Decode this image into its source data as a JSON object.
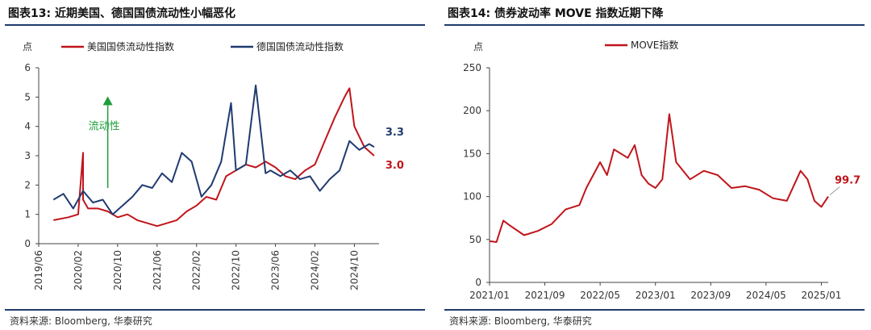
{
  "charts": {
    "left": {
      "title": "图表13:   近期美国、德国国债流动性小幅恶化",
      "source": "资料来源:   Bloomberg,  华泰研究"
    },
    "right": {
      "title": "图表14:   债券波动率 MOVE 指数近期下降",
      "source": "资料来源:   Bloomberg,  华泰研究"
    }
  },
  "chart_data": [
    {
      "type": "line",
      "id": "left",
      "ylabel": "点",
      "ylim": [
        0,
        6
      ],
      "yticks": [
        "0",
        "1",
        "2",
        "3",
        "4",
        "5",
        "6"
      ],
      "xticks": [
        "2019/06",
        "2020/02",
        "2020/10",
        "2021/06",
        "2022/02",
        "2022/10",
        "2023/06",
        "2024/02",
        "2024/10"
      ],
      "xrange": [
        "2019/06",
        "2025/03"
      ],
      "grid": false,
      "legend_position": "top",
      "annotation": {
        "text": "流动性",
        "arrow_from": 1.9,
        "arrow_to": 5.0,
        "x": "2020/08"
      },
      "series": [
        {
          "name": "美国国债流动性指数",
          "color": "#c0151b",
          "end_label": "3.0",
          "x": [
            "2019/09",
            "2019/12",
            "2020/02",
            "2020/03",
            "2020/03",
            "2020/04",
            "2020/06",
            "2020/08",
            "2020/10",
            "2020/12",
            "2021/02",
            "2021/04",
            "2021/06",
            "2021/08",
            "2021/10",
            "2021/12",
            "2022/02",
            "2022/04",
            "2022/06",
            "2022/08",
            "2022/10",
            "2022/12",
            "2023/02",
            "2023/04",
            "2023/06",
            "2023/08",
            "2023/10",
            "2023/12",
            "2024/02",
            "2024/04",
            "2024/06",
            "2024/08",
            "2024/09",
            "2024/10",
            "2024/12",
            "2025/02"
          ],
          "values": [
            0.8,
            0.9,
            1.0,
            3.1,
            1.5,
            1.2,
            1.2,
            1.1,
            0.9,
            1.0,
            0.8,
            0.7,
            0.6,
            0.7,
            0.8,
            1.1,
            1.3,
            1.6,
            1.5,
            2.3,
            2.5,
            2.7,
            2.6,
            2.8,
            2.6,
            2.3,
            2.2,
            2.5,
            2.7,
            3.5,
            4.3,
            5.0,
            5.3,
            4.0,
            3.3,
            3.0
          ]
        },
        {
          "name": "德国国债流动性指数",
          "color": "#1f3b70",
          "end_label": "3.3",
          "x": [
            "2019/09",
            "2019/11",
            "2020/01",
            "2020/03",
            "2020/05",
            "2020/07",
            "2020/09",
            "2020/11",
            "2021/01",
            "2021/03",
            "2021/05",
            "2021/07",
            "2021/09",
            "2021/11",
            "2022/01",
            "2022/03",
            "2022/05",
            "2022/07",
            "2022/09",
            "2022/10",
            "2022/12",
            "2023/02",
            "2023/04",
            "2023/05",
            "2023/07",
            "2023/09",
            "2023/11",
            "2024/01",
            "2024/03",
            "2024/05",
            "2024/07",
            "2024/09",
            "2024/11",
            "2025/01",
            "2025/02"
          ],
          "values": [
            1.5,
            1.7,
            1.2,
            1.8,
            1.4,
            1.5,
            1.0,
            1.3,
            1.6,
            2.0,
            1.9,
            2.4,
            2.1,
            3.1,
            2.8,
            1.6,
            2.0,
            2.8,
            4.8,
            2.5,
            2.7,
            5.4,
            2.4,
            2.5,
            2.3,
            2.5,
            2.2,
            2.3,
            1.8,
            2.2,
            2.5,
            3.5,
            3.2,
            3.4,
            3.3
          ]
        }
      ]
    },
    {
      "type": "line",
      "id": "right",
      "ylabel": "点",
      "ylim": [
        0,
        250
      ],
      "yticks": [
        "0",
        "50",
        "100",
        "150",
        "200",
        "250"
      ],
      "xticks": [
        "2021/01",
        "2021/09",
        "2022/05",
        "2023/01",
        "2023/09",
        "2024/05",
        "2025/01"
      ],
      "xrange": [
        "2021/01",
        "2025/02"
      ],
      "grid": false,
      "legend_position": "top",
      "series": [
        {
          "name": "MOVE指数",
          "color": "#c0151b",
          "end_label": "99.7",
          "x": [
            "2021/01",
            "2021/02",
            "2021/03",
            "2021/04",
            "2021/06",
            "2021/08",
            "2021/10",
            "2021/12",
            "2022/02",
            "2022/03",
            "2022/05",
            "2022/06",
            "2022/07",
            "2022/09",
            "2022/10",
            "2022/11",
            "2022/12",
            "2023/01",
            "2023/02",
            "2023/03",
            "2023/04",
            "2023/06",
            "2023/08",
            "2023/10",
            "2023/12",
            "2024/02",
            "2024/04",
            "2024/06",
            "2024/08",
            "2024/10",
            "2024/11",
            "2024/12",
            "2025/01",
            "2025/02"
          ],
          "values": [
            48,
            47,
            72,
            66,
            55,
            60,
            68,
            85,
            90,
            110,
            140,
            125,
            155,
            145,
            160,
            125,
            115,
            110,
            120,
            196,
            140,
            120,
            130,
            125,
            110,
            112,
            108,
            98,
            95,
            130,
            120,
            95,
            88,
            100
          ]
        }
      ]
    }
  ]
}
